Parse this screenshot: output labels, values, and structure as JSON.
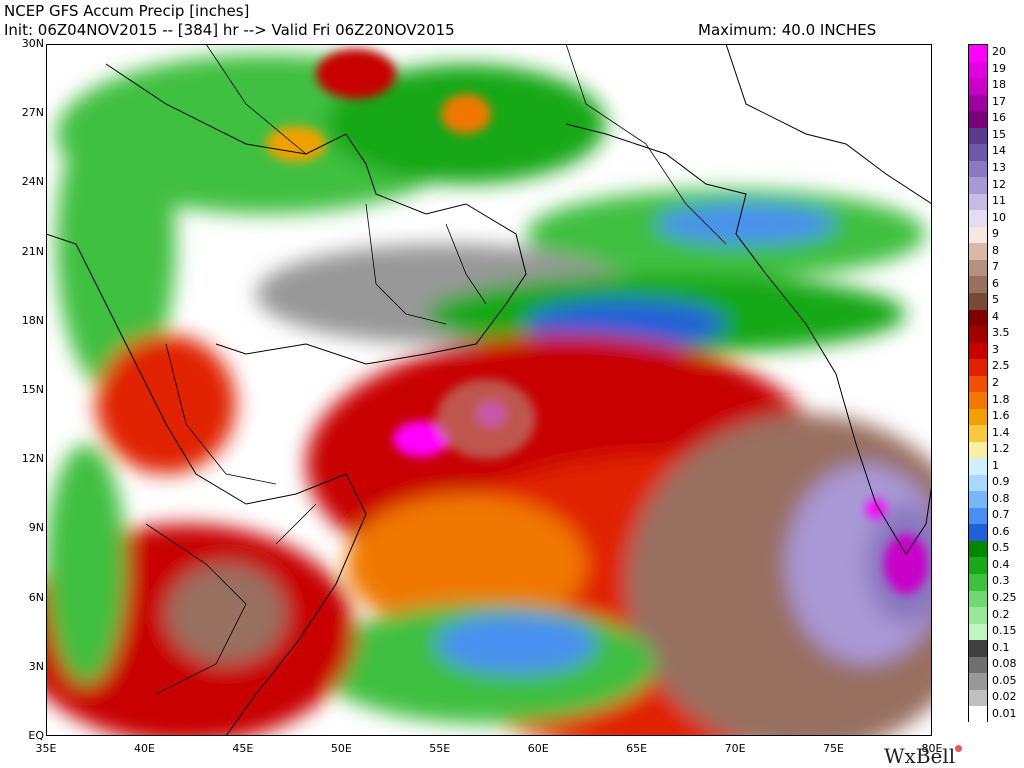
{
  "header": {
    "title": "NCEP GFS Accum Precip [inches]",
    "subtitle": "Init: 06Z04NOV2015 -- [384] hr --> Valid Fri 06Z20NOV2015",
    "maximum": "Maximum: 40.0 INCHES"
  },
  "axes": {
    "lat_labels": [
      "30N",
      "27N",
      "24N",
      "21N",
      "18N",
      "15N",
      "12N",
      "9N",
      "6N",
      "3N",
      "EQ"
    ],
    "lon_labels": [
      "35E",
      "40E",
      "45E",
      "50E",
      "55E",
      "60E",
      "65E",
      "70E",
      "75E",
      "80E"
    ]
  },
  "colorbar": {
    "labels": [
      "20",
      "19",
      "18",
      "17",
      "16",
      "15",
      "14",
      "13",
      "12",
      "11",
      "10",
      "9",
      "8",
      "7",
      "6",
      "5",
      "4",
      "3.5",
      "3",
      "2.5",
      "2",
      "1.8",
      "1.6",
      "1.4",
      "1.2",
      "1",
      "0.9",
      "0.8",
      "0.7",
      "0.6",
      "0.5",
      "0.4",
      "0.3",
      "0.25",
      "0.2",
      "0.15",
      "0.1",
      "0.08",
      "0.05",
      "0.02",
      "0.01"
    ],
    "colors": [
      "#ff00ff",
      "#e000e0",
      "#c800c8",
      "#a000a0",
      "#780078",
      "#5a3c8c",
      "#6a5aa8",
      "#8a78c0",
      "#a898d4",
      "#c8bce4",
      "#e4dcf0",
      "#f4e8e0",
      "#d8b8a8",
      "#b89080",
      "#987060",
      "#784838",
      "#800000",
      "#a00000",
      "#c80000",
      "#e02000",
      "#f05000",
      "#f07800",
      "#f0a000",
      "#f8c840",
      "#f8f0a0",
      "#d0f0ff",
      "#a8d8ff",
      "#78b8f8",
      "#4890f0",
      "#2060d8",
      "#008800",
      "#18a818",
      "#40c040",
      "#70d870",
      "#98e898",
      "#c0f4c0",
      "#404040",
      "#707070",
      "#989898",
      "#c0c0c0",
      "#ffffff"
    ]
  },
  "brand": "WxBell"
}
